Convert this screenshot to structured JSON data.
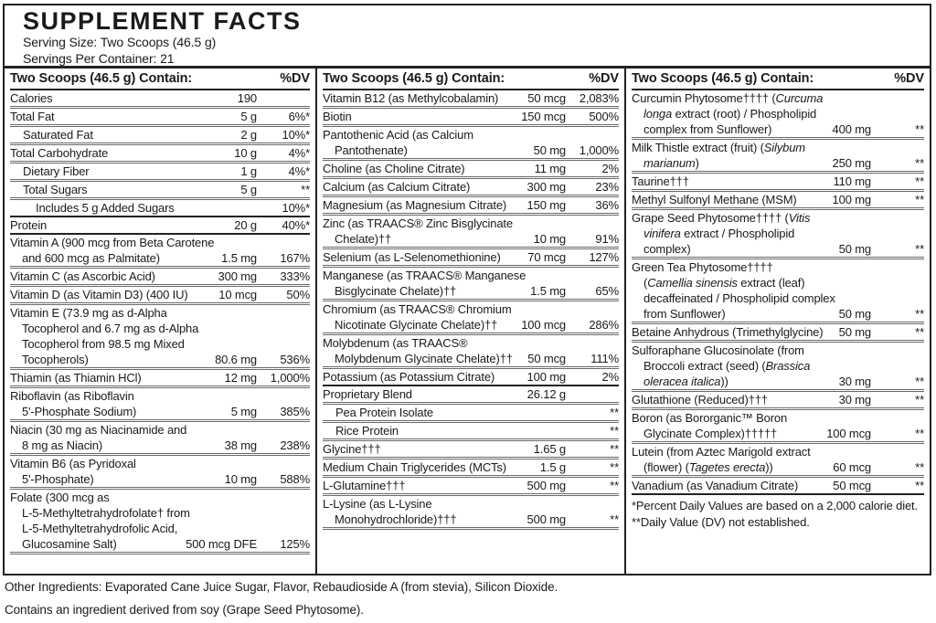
{
  "header": {
    "title": "SUPPLEMENT FACTS",
    "serving_size": "Serving Size: Two Scoops (46.5 g)",
    "servings_per_container": "Servings Per Container: 21"
  },
  "table": {
    "column_header": {
      "label": "Two Scoops (46.5 g) Contain:",
      "dv": "%DV"
    },
    "columns": [
      {
        "rows": [
          {
            "lines": [
              "Calories"
            ],
            "amount": "190",
            "dv": "",
            "sep": "thin"
          },
          {
            "lines": [
              "Total Fat"
            ],
            "amount": "5 g",
            "dv": "6%*",
            "sep": "thin"
          },
          {
            "lines": [
              "Saturated Fat"
            ],
            "indent": 1,
            "amount": "2 g",
            "dv": "10%*",
            "sep": "thin"
          },
          {
            "lines": [
              "Total Carbohydrate"
            ],
            "amount": "10 g",
            "dv": "4%*",
            "sep": "thin"
          },
          {
            "lines": [
              "Dietary Fiber"
            ],
            "indent": 1,
            "amount": "1 g",
            "dv": "4%*",
            "sep": "thin"
          },
          {
            "lines": [
              "Total Sugars"
            ],
            "indent": 1,
            "amount": "5 g",
            "dv": "**",
            "sep": "thin"
          },
          {
            "lines": [
              "Includes 5 g Added Sugars"
            ],
            "indent": 2,
            "amount": "",
            "dv": "10%*",
            "sep": "thick"
          },
          {
            "lines": [
              "Protein"
            ],
            "amount": "20 g",
            "dv": "40%*",
            "sep": "thick"
          },
          {
            "lines": [
              "Vitamin A (900 mcg from Beta Carotene",
              "and 600 mcg as Palmitate)"
            ],
            "amount": "1.5 mg",
            "dv": "167%",
            "sep": "thin"
          },
          {
            "lines": [
              "Vitamin C (as Ascorbic Acid)"
            ],
            "amount": "300 mg",
            "dv": "333%",
            "sep": "thin"
          },
          {
            "lines": [
              "Vitamin D (as Vitamin D3) (400 IU)"
            ],
            "amount": "10 mcg",
            "dv": "50%",
            "sep": "thin"
          },
          {
            "lines": [
              "Vitamin E (73.9 mg as d-Alpha",
              "Tocopherol and 6.7 mg as d-Alpha",
              "Tocopherol from 98.5 mg Mixed",
              "Tocopherols)"
            ],
            "amount": "80.6 mg",
            "dv": "536%",
            "sep": "thin"
          },
          {
            "lines": [
              "Thiamin (as Thiamin HCl)"
            ],
            "amount": "12 mg",
            "dv": "1,000%",
            "sep": "thin"
          },
          {
            "lines": [
              "Riboflavin (as Riboflavin",
              "5'-Phosphate Sodium)"
            ],
            "amount": "5 mg",
            "dv": "385%",
            "sep": "thin"
          },
          {
            "lines": [
              "Niacin (30 mg as Niacinamide and",
              "8 mg as Niacin)"
            ],
            "amount": "38 mg",
            "dv": "238%",
            "sep": "thin"
          },
          {
            "lines": [
              "Vitamin B6 (as Pyridoxal",
              "5'-Phosphate)"
            ],
            "amount": "10 mg",
            "dv": "588%",
            "sep": "thin"
          },
          {
            "lines": [
              "Folate (300 mcg as",
              "L-5-Methyltetrahydrofolate† from",
              "L-5-Methyltetrahydrofolic Acid,",
              "Glucosamine Salt)"
            ],
            "amount": "500 mcg DFE",
            "dv": "125%",
            "sep": "thin"
          }
        ]
      },
      {
        "rows": [
          {
            "lines": [
              "Vitamin B12 (as Methylcobalamin)"
            ],
            "amount": "50 mcg",
            "dv": "2,083%",
            "sep": "thin"
          },
          {
            "lines": [
              "Biotin"
            ],
            "amount": "150 mcg",
            "dv": "500%",
            "sep": "thin"
          },
          {
            "lines": [
              "Pantothenic Acid (as Calcium",
              "Pantothenate)"
            ],
            "amount": "50 mg",
            "dv": "1,000%",
            "sep": "thin"
          },
          {
            "lines": [
              "Choline (as Choline Citrate)"
            ],
            "amount": "11 mg",
            "dv": "2%",
            "sep": "thin"
          },
          {
            "lines": [
              "Calcium (as Calcium Citrate)"
            ],
            "amount": "300 mg",
            "dv": "23%",
            "sep": "thin"
          },
          {
            "lines": [
              "Magnesium (as Magnesium Citrate)"
            ],
            "amount": "150 mg",
            "dv": "36%",
            "sep": "thin"
          },
          {
            "lines": [
              "Zinc (as TRAACS® Zinc Bisglycinate",
              "Chelate)††"
            ],
            "amount": "10 mg",
            "dv": "91%",
            "sep": "thin"
          },
          {
            "lines": [
              "Selenium (as L-Selenomethionine)"
            ],
            "amount": "70 mcg",
            "dv": "127%",
            "sep": "thin"
          },
          {
            "lines": [
              "Manganese (as TRAACS® Manganese",
              "Bisglycinate Chelate)††"
            ],
            "amount": "1.5 mg",
            "dv": "65%",
            "sep": "thin"
          },
          {
            "lines": [
              "Chromium (as TRAACS® Chromium",
              "Nicotinate Glycinate Chelate)††"
            ],
            "amount": "100 mcg",
            "dv": "286%",
            "sep": "thin"
          },
          {
            "lines": [
              "Molybdenum (as TRAACS®",
              "Molybdenum Glycinate Chelate)††"
            ],
            "amount": "50 mcg",
            "dv": "111%",
            "sep": "thin"
          },
          {
            "lines": [
              "Potassium (as Potassium Citrate)"
            ],
            "amount": "100 mg",
            "dv": "2%",
            "sep": "thick"
          },
          {
            "lines": [
              "Proprietary Blend"
            ],
            "amount": "26.12 g",
            "dv": "",
            "sep": "thin"
          },
          {
            "lines": [
              "Pea Protein Isolate"
            ],
            "indent": 1,
            "amount": "",
            "dv": "**",
            "sep": "thin"
          },
          {
            "lines": [
              "Rice Protein"
            ],
            "indent": 1,
            "amount": "",
            "dv": "**",
            "sep": "thin"
          },
          {
            "lines": [
              "Glycine†††"
            ],
            "amount": "1.65 g",
            "dv": "**",
            "sep": "thin"
          },
          {
            "lines": [
              "Medium Chain Triglycerides (MCTs)"
            ],
            "amount": "1.5 g",
            "dv": "**",
            "sep": "thin"
          },
          {
            "lines": [
              "L-Glutamine†††"
            ],
            "amount": "500 mg",
            "dv": "**",
            "sep": "thin"
          },
          {
            "lines": [
              "L-Lysine (as L-Lysine",
              "Monohydrochloride)†††"
            ],
            "amount": "500 mg",
            "dv": "**",
            "sep": "thin"
          }
        ]
      },
      {
        "rows": [
          {
            "lines": [
              "Curcumin Phytosome†††† (*Curcuma*",
              "*longa* extract (root) / Phospholipid",
              "complex from Sunflower)"
            ],
            "amount": "400 mg",
            "dv": "**",
            "sep": "thin"
          },
          {
            "lines": [
              "Milk Thistle extract (fruit) (*Silybum*",
              "*marianum*)"
            ],
            "amount": "250 mg",
            "dv": "**",
            "sep": "thin"
          },
          {
            "lines": [
              "Taurine†††"
            ],
            "amount": "110 mg",
            "dv": "**",
            "sep": "thin"
          },
          {
            "lines": [
              "Methyl Sulfonyl Methane (MSM)"
            ],
            "amount": "100 mg",
            "dv": "**",
            "sep": "thin"
          },
          {
            "lines": [
              "Grape Seed Phytosome†††† (*Vitis*",
              "*vinifera* extract / Phospholipid",
              "complex)"
            ],
            "amount": "50 mg",
            "dv": "**",
            "sep": "thin"
          },
          {
            "lines": [
              "Green Tea Phytosome††††",
              "(*Camellia sinensis* extract (leaf)",
              "decaffeinated / Phospholipid complex",
              "from Sunflower)"
            ],
            "amount": "50 mg",
            "dv": "**",
            "sep": "thin"
          },
          {
            "lines": [
              "Betaine Anhydrous (Trimethylglycine)"
            ],
            "amount": "50 mg",
            "dv": "**",
            "sep": "thin"
          },
          {
            "lines": [
              "Sulforaphane Glucosinolate (from",
              "Broccoli extract (seed) (*Brassica*",
              "*oleracea italica*))"
            ],
            "amount": "30 mg",
            "dv": "**",
            "sep": "thin"
          },
          {
            "lines": [
              "Glutathione (Reduced)†††"
            ],
            "amount": "30 mg",
            "dv": "**",
            "sep": "thin"
          },
          {
            "lines": [
              "Boron (as Bororganic™ Boron",
              "Glycinate Complex)†††††"
            ],
            "amount": "100 mcg",
            "dv": "**",
            "sep": "thin"
          },
          {
            "lines": [
              "Lutein (from Aztec Marigold extract",
              "(flower) (*Tagetes erecta*))"
            ],
            "amount": "60 mcg",
            "dv": "**",
            "sep": "thin"
          },
          {
            "lines": [
              "Vanadium (as Vanadium Citrate)"
            ],
            "amount": "50 mcg",
            "dv": "**",
            "sep": "thick"
          }
        ]
      }
    ],
    "footnotes": [
      "*Percent Daily Values are based on a 2,000 calorie diet.",
      "**Daily Value (DV) not established."
    ]
  },
  "footer": {
    "other_ingredients": "Other Ingredients: Evaporated Cane Juice Sugar, Flavor, Rebaudioside A (from stevia), Silicon Dioxide.",
    "allergen": "Contains an ingredient derived from soy (Grape Seed Phytosome)."
  }
}
